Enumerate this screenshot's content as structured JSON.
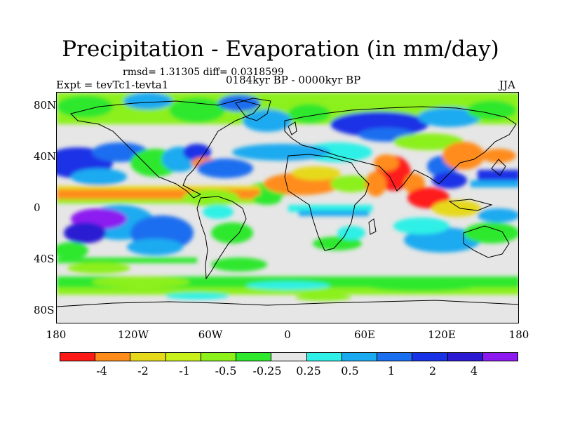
{
  "title": "Precipitation - Evaporation (in mm/day)",
  "stats": "rmsd= 1.31305 diff= 0.0318599",
  "left_label": "Expt = tevTc1-tevta1",
  "center_label": "0184kyr BP - 0000kyr BP",
  "right_label": "JJA",
  "lat_labels": [
    "80N",
    "40N",
    "0",
    "40S",
    "80S"
  ],
  "lon_labels": [
    "180",
    "120W",
    "60W",
    "0",
    "60E",
    "120E",
    "180"
  ],
  "colorbar": {
    "colors": [
      "#ff1a1a",
      "#ff8c1a",
      "#e6d91a",
      "#c8f01a",
      "#8cf01a",
      "#2ee82e",
      "#e6e6e6",
      "#2ef0e6",
      "#1aaaf0",
      "#1a6ef0",
      "#1a32e6",
      "#2a1ad2",
      "#8c1af0"
    ],
    "labels": [
      "-4",
      "-2",
      "-1",
      "-0.5",
      "-0.25",
      "0.25",
      "0.5",
      "1",
      "2",
      "4"
    ]
  }
}
